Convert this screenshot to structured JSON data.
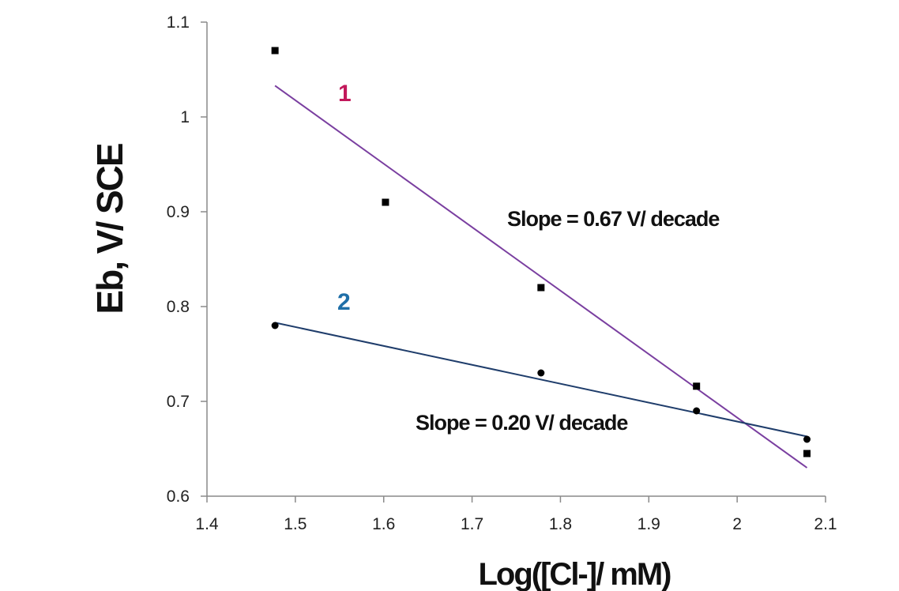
{
  "chart_data": {
    "type": "scatter",
    "xlabel": "Log([Cl-]/ mM)",
    "ylabel": "Eb, V/ SCE",
    "xlim": [
      1.4,
      2.1
    ],
    "ylim": [
      0.6,
      1.1
    ],
    "xticks": [
      "1.4",
      "1.5",
      "1.6",
      "1.7",
      "1.8",
      "1.9",
      "2",
      "2.1"
    ],
    "yticks": [
      "0.6",
      "0.7",
      "0.8",
      "0.9",
      "1",
      "1.1"
    ],
    "grid": false,
    "series": [
      {
        "name": "1",
        "marker": "square",
        "color": "#7a3fa0",
        "label_color": "#c2185b",
        "points": [
          {
            "x": 1.477,
            "y": 1.07
          },
          {
            "x": 1.602,
            "y": 0.91
          },
          {
            "x": 1.778,
            "y": 0.82
          },
          {
            "x": 1.954,
            "y": 0.716
          },
          {
            "x": 2.079,
            "y": 0.645
          }
        ],
        "fit": {
          "x": [
            1.477,
            2.079
          ],
          "y": [
            1.033,
            0.63
          ]
        },
        "annotation": "Slope = 0.67 V/ decade"
      },
      {
        "name": "2",
        "marker": "circle",
        "color": "#1f3d6b",
        "label_color": "#1f6fa8",
        "points": [
          {
            "x": 1.477,
            "y": 0.78
          },
          {
            "x": 1.778,
            "y": 0.73
          },
          {
            "x": 1.954,
            "y": 0.69
          },
          {
            "x": 2.079,
            "y": 0.66
          }
        ],
        "fit": {
          "x": [
            1.477,
            2.079
          ],
          "y": [
            0.783,
            0.663
          ]
        },
        "annotation": "Slope = 0.20 V/ decade"
      }
    ]
  }
}
